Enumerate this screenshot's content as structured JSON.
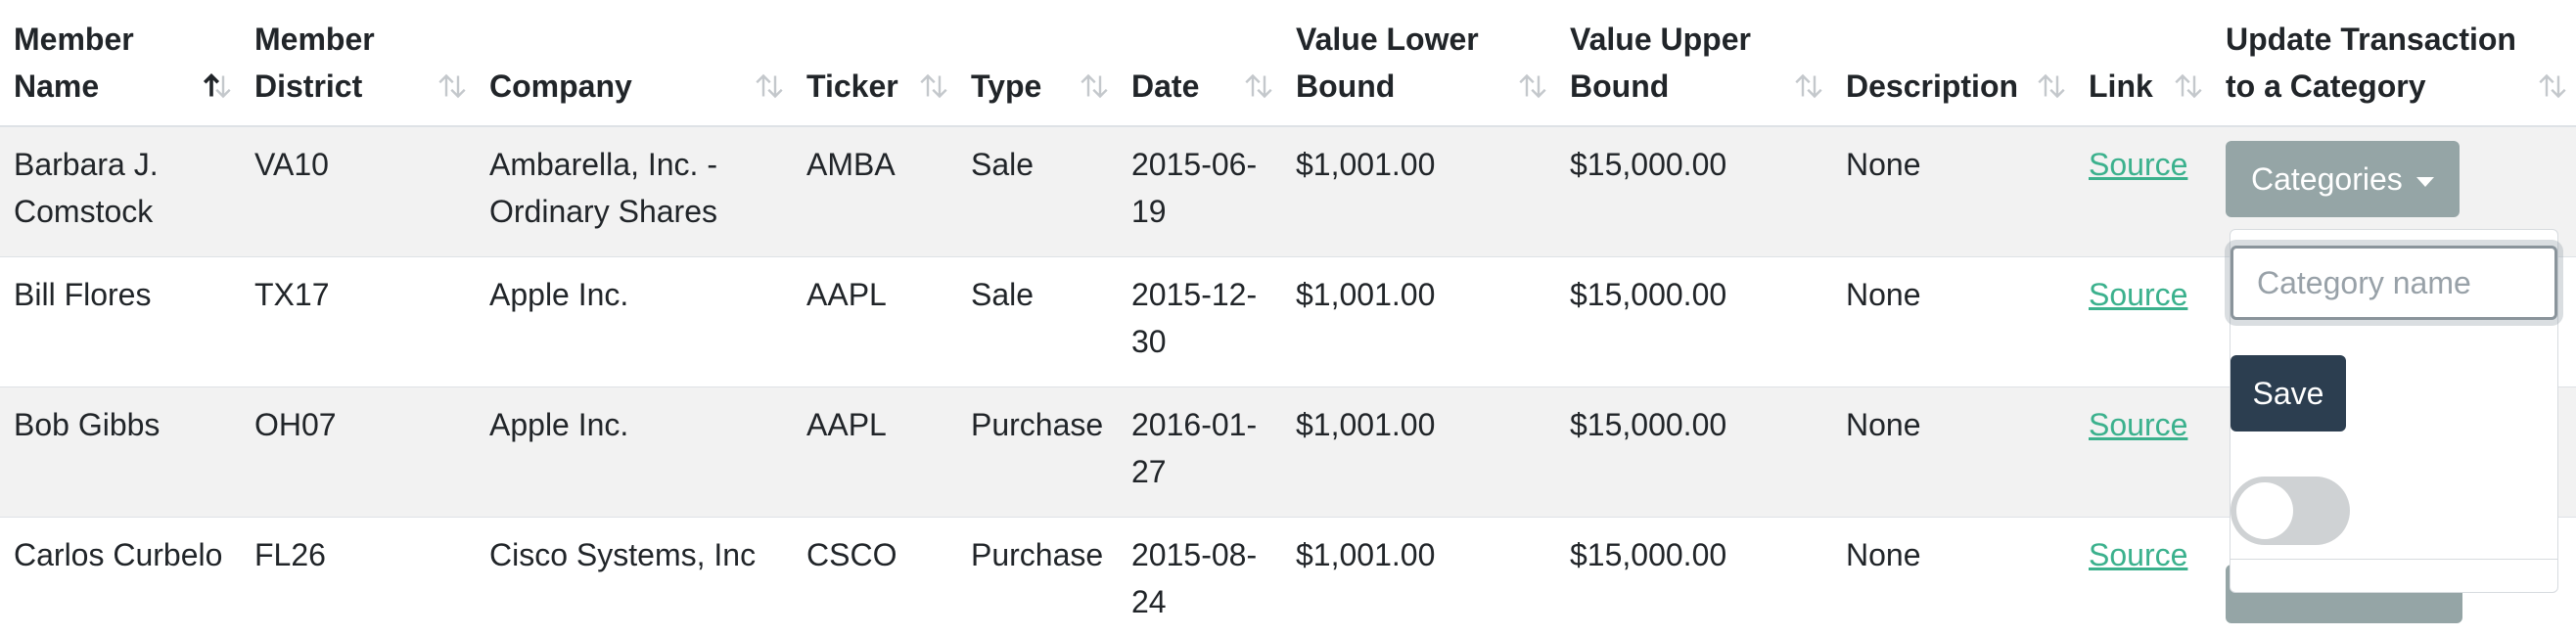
{
  "table": {
    "columns": [
      {
        "label": "Member Name",
        "sort": "asc"
      },
      {
        "label": "Member District",
        "sort": "none"
      },
      {
        "label": "Company",
        "sort": "none"
      },
      {
        "label": "Ticker",
        "sort": "none"
      },
      {
        "label": "Type",
        "sort": "none"
      },
      {
        "label": "Date",
        "sort": "none"
      },
      {
        "label": "Value Lower Bound",
        "sort": "none"
      },
      {
        "label": "Value Upper Bound",
        "sort": "none"
      },
      {
        "label": "Description",
        "sort": "none"
      },
      {
        "label": "Link",
        "sort": "none"
      },
      {
        "label": "Update Transaction to a Category",
        "sort": "none"
      }
    ],
    "rows": [
      {
        "name": "Barbara J. Comstock",
        "district": "VA10",
        "company": "Ambarella, Inc. - Ordinary Shares",
        "ticker": "AMBA",
        "type": "Sale",
        "date": "2015-06-19",
        "lower": "$1,001.00",
        "upper": "$15,000.00",
        "description": "None",
        "link": "Source"
      },
      {
        "name": "Bill Flores",
        "district": "TX17",
        "company": "Apple Inc.",
        "ticker": "AAPL",
        "type": "Sale",
        "date": "2015-12-30",
        "lower": "$1,001.00",
        "upper": "$15,000.00",
        "description": "None",
        "link": "Source"
      },
      {
        "name": "Bob Gibbs",
        "district": "OH07",
        "company": "Apple Inc.",
        "ticker": "AAPL",
        "type": "Purchase",
        "date": "2016-01-27",
        "lower": "$1,001.00",
        "upper": "$15,000.00",
        "description": "None",
        "link": "Source"
      },
      {
        "name": "Carlos Curbelo",
        "district": "FL26",
        "company": "Cisco Systems, Inc",
        "ticker": "CSCO",
        "type": "Purchase",
        "date": "2015-08-24",
        "lower": "$1,001.00",
        "upper": "$15,000.00",
        "description": "None",
        "link": "Source"
      }
    ]
  },
  "category_control": {
    "button_label": "Categories",
    "input_placeholder": "Category name",
    "save_label": "Save",
    "toggle_on": false
  },
  "colors": {
    "link": "#3bb18d",
    "categories_button": "#95a5a6",
    "save_button": "#2c3e50",
    "stripe": "#f2f2f2"
  }
}
